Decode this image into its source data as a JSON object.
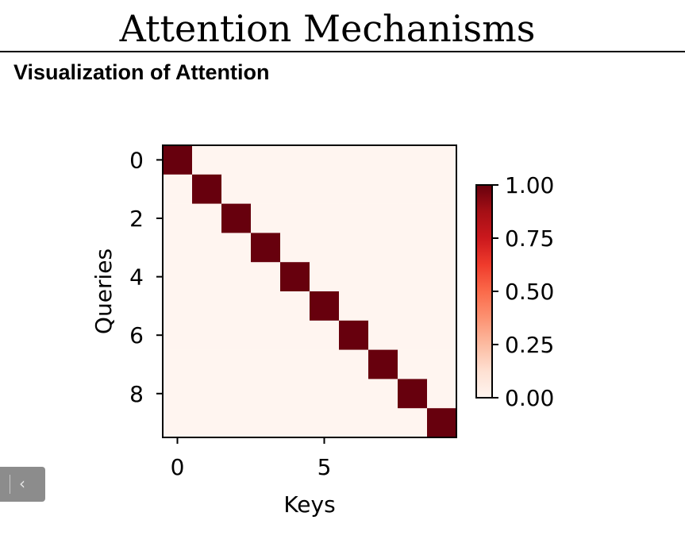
{
  "slide": {
    "title": "Attention Mechanisms",
    "subtitle": "Visualization of Attention"
  },
  "nav": {
    "back_icon": "chevron-left-icon",
    "back_glyph": "‹"
  },
  "chart_data": {
    "type": "heatmap",
    "title": "",
    "xlabel": "Keys",
    "ylabel": "Queries",
    "rows": 10,
    "cols": 10,
    "x_ticks": [
      0,
      5
    ],
    "y_ticks": [
      0,
      2,
      4,
      6,
      8
    ],
    "values": [
      [
        1,
        0,
        0,
        0,
        0,
        0,
        0,
        0,
        0,
        0
      ],
      [
        0,
        1,
        0,
        0,
        0,
        0,
        0,
        0,
        0,
        0
      ],
      [
        0,
        0,
        1,
        0,
        0,
        0,
        0,
        0,
        0,
        0
      ],
      [
        0,
        0,
        0,
        1,
        0,
        0,
        0,
        0,
        0,
        0
      ],
      [
        0,
        0,
        0,
        0,
        1,
        0,
        0,
        0,
        0,
        0
      ],
      [
        0,
        0,
        0,
        0,
        0,
        1,
        0,
        0,
        0,
        0
      ],
      [
        0,
        0,
        0,
        0,
        0,
        0,
        1,
        0,
        0,
        0
      ],
      [
        0,
        0,
        0,
        0,
        0,
        0,
        0,
        1,
        0,
        0
      ],
      [
        0,
        0,
        0,
        0,
        0,
        0,
        0,
        0,
        1,
        0
      ],
      [
        0,
        0,
        0,
        0,
        0,
        0,
        0,
        0,
        0,
        1
      ]
    ],
    "colormap": "Reds",
    "colorbar": {
      "range": [
        0,
        1
      ],
      "ticks": [
        "0.00",
        "0.25",
        "0.50",
        "0.75",
        "1.00"
      ]
    },
    "colors": {
      "low": "#fff5f0",
      "high": "#67000d"
    }
  }
}
